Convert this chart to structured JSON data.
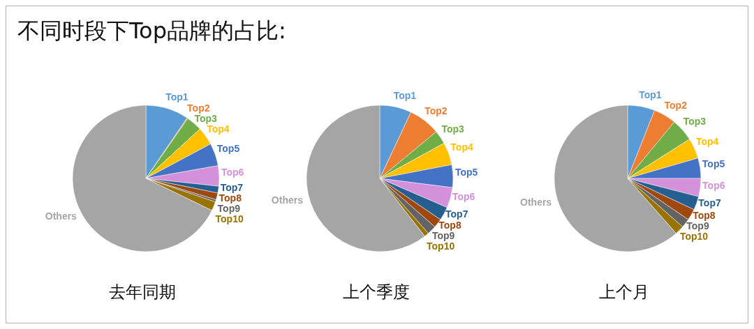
{
  "chart_data": [
    {
      "type": "other",
      "title": "不同时段下Top品牌的占比:"
    },
    {
      "type": "pie",
      "title": "去年同期",
      "categories": [
        "Top1",
        "Top2",
        "Top3",
        "Top4",
        "Top5",
        "Top6",
        "Top7",
        "Top8",
        "Top9",
        "Top10",
        "Others"
      ],
      "values": [
        9.5,
        0.2,
        3.5,
        4,
        5,
        4.5,
        1.5,
        1.5,
        0.5,
        2,
        67.8
      ],
      "colors": [
        "#5b9bd5",
        "#ed7d31",
        "#70ad47",
        "#ffc000",
        "#4472c4",
        "#d291d8",
        "#255e91",
        "#9e480e",
        "#636363",
        "#997300",
        "#a5a5a5"
      ]
    },
    {
      "type": "pie",
      "title": "上个季度",
      "categories": [
        "Top1",
        "Top2",
        "Top3",
        "Top4",
        "Top5",
        "Top6",
        "Top7",
        "Top8",
        "Top9",
        "Top10",
        "Others"
      ],
      "values": [
        7,
        7,
        3,
        5,
        5,
        4.5,
        3,
        2,
        2,
        1,
        60.5
      ],
      "colors": [
        "#5b9bd5",
        "#ed7d31",
        "#70ad47",
        "#ffc000",
        "#4472c4",
        "#d291d8",
        "#255e91",
        "#9e480e",
        "#636363",
        "#997300",
        "#a5a5a5"
      ]
    },
    {
      "type": "pie",
      "title": "上个月",
      "categories": [
        "Top1",
        "Top2",
        "Top3",
        "Top4",
        "Top5",
        "Top6",
        "Top7",
        "Top8",
        "Top9",
        "Top10",
        "Others"
      ],
      "values": [
        6,
        5,
        5,
        4.5,
        4.5,
        4,
        3,
        2.5,
        2,
        2,
        61.5
      ],
      "colors": [
        "#5b9bd5",
        "#ed7d31",
        "#70ad47",
        "#ffc000",
        "#4472c4",
        "#d291d8",
        "#255e91",
        "#9e480e",
        "#636363",
        "#997300",
        "#a5a5a5"
      ]
    }
  ]
}
